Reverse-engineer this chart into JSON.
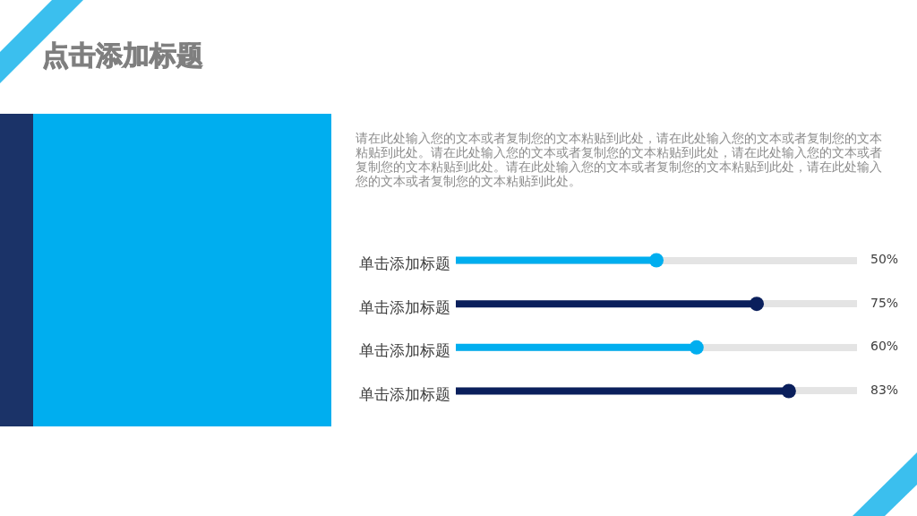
{
  "chart_data": {
    "type": "lollipop",
    "orientation": "horizontal",
    "title": "点击添加标题",
    "annotations": [
      "请在此处输入您的文本或者复制您的文本粘贴到此处，请在此处输入您的文本或者复制您的文本粘贴到此处。请在此处输入您的文本或者复制您的文本粘贴到此处，请在此处输入您的文本或者复制您的文本粘贴到此处。请在此处输入您的文本或者复制您的文本粘贴到此处，请在此处输入您的文本或者复制您的文本粘贴到此处。"
    ],
    "categories": [
      "单击添加标题",
      "单击添加标题",
      "单击添加标题",
      "单击添加标题"
    ],
    "values": [
      50,
      75,
      60,
      83
    ],
    "colors": [
      "#00aeef",
      "#0a1f5c",
      "#00aeef",
      "#0a1f5c"
    ],
    "value_labels": [
      "50%",
      "75%",
      "60%",
      "83%"
    ],
    "xlim": [
      0,
      100
    ],
    "tick_labels": "y",
    "marker": "circle",
    "grid": "y"
  }
}
